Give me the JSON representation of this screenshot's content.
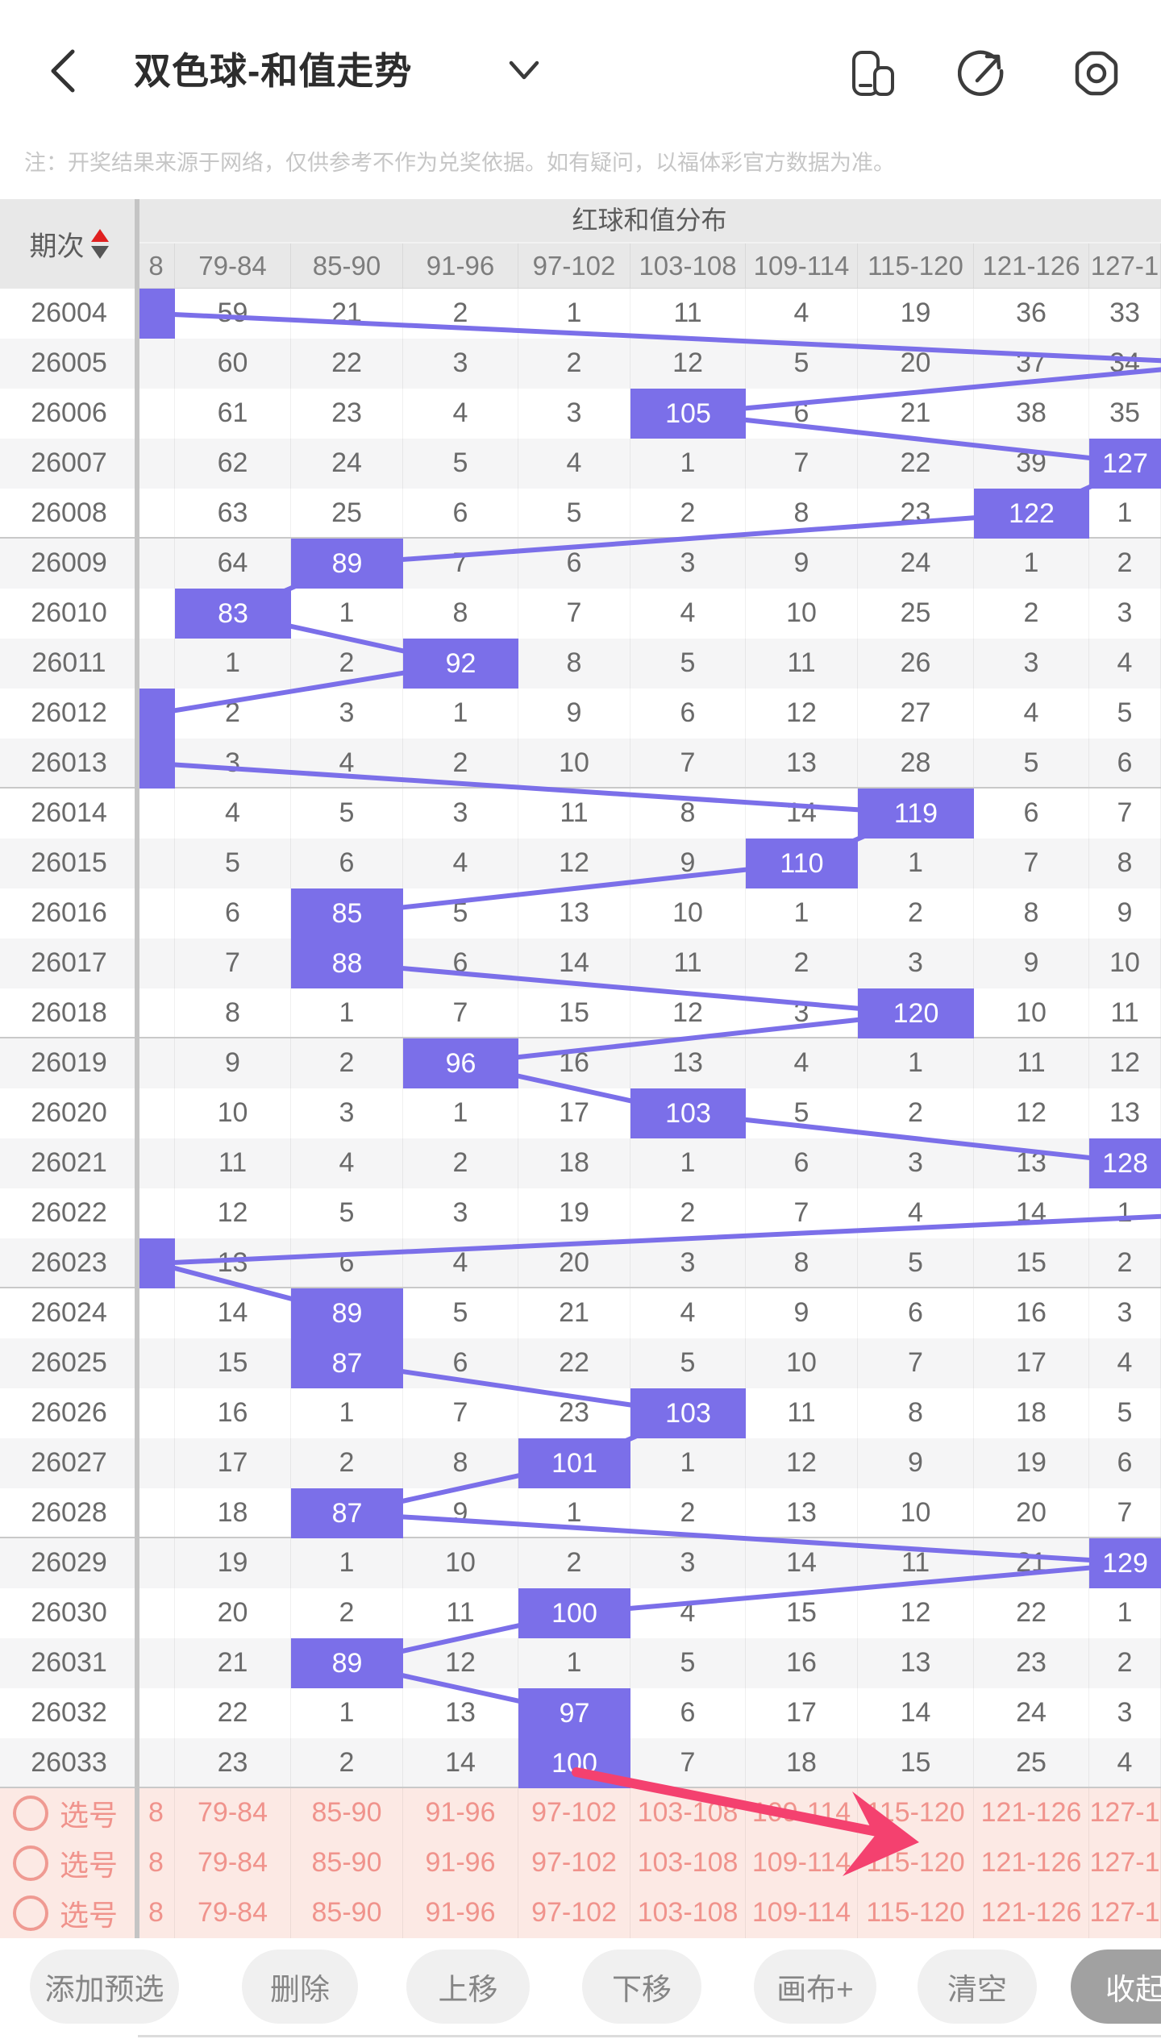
{
  "header": {
    "title": "双色球-和值走势",
    "icons": {
      "back": "back-chevron",
      "dropdown": "chevron-down",
      "split_screen": "split-screen",
      "share": "share-compass",
      "settings": "settings-hexagon"
    }
  },
  "notice": "注：开奖结果来源于网络，仅供参考不作为兑奖依据。如有疑问，以福体彩官方数据为准。",
  "table": {
    "period_column_header": "期次",
    "group_header": "红球和值分布",
    "columns": [
      "8",
      "79-84",
      "85-90",
      "91-96",
      "97-102",
      "103-108",
      "109-114",
      "115-120",
      "121-126",
      "127-1"
    ],
    "rows": [
      {
        "period": "26004",
        "hit_col": 0,
        "hit_value": "",
        "cells": [
          "",
          "59",
          "21",
          "2",
          "1",
          "11",
          "4",
          "19",
          "36",
          "33"
        ]
      },
      {
        "period": "26005",
        "hit_col": "right",
        "hit_value": "",
        "cells": [
          "",
          "60",
          "22",
          "3",
          "2",
          "12",
          "5",
          "20",
          "37",
          "34"
        ]
      },
      {
        "period": "26006",
        "hit_col": 5,
        "hit_value": "105",
        "cells": [
          "",
          "61",
          "23",
          "4",
          "3",
          "",
          "6",
          "21",
          "38",
          "35"
        ]
      },
      {
        "period": "26007",
        "hit_col": 9,
        "hit_value": "127",
        "cells": [
          "",
          "62",
          "24",
          "5",
          "4",
          "1",
          "7",
          "22",
          "39",
          ""
        ]
      },
      {
        "period": "26008",
        "hit_col": 8,
        "hit_value": "122",
        "cells": [
          "",
          "63",
          "25",
          "6",
          "5",
          "2",
          "8",
          "23",
          "",
          "1"
        ]
      },
      {
        "period": "26009",
        "hit_col": 2,
        "hit_value": "89",
        "cells": [
          "",
          "64",
          "",
          "7",
          "6",
          "3",
          "9",
          "24",
          "1",
          "2"
        ]
      },
      {
        "period": "26010",
        "hit_col": 1,
        "hit_value": "83",
        "cells": [
          "",
          "",
          "1",
          "8",
          "7",
          "4",
          "10",
          "25",
          "2",
          "3"
        ]
      },
      {
        "period": "26011",
        "hit_col": 3,
        "hit_value": "92",
        "cells": [
          "",
          "1",
          "2",
          "",
          "8",
          "5",
          "11",
          "26",
          "3",
          "4"
        ]
      },
      {
        "period": "26012",
        "hit_col": 0,
        "hit_value": "",
        "cells": [
          "",
          "2",
          "3",
          "1",
          "9",
          "6",
          "12",
          "27",
          "4",
          "5"
        ]
      },
      {
        "period": "26013",
        "hit_col": 0,
        "hit_value": "",
        "cells": [
          "",
          "3",
          "4",
          "2",
          "10",
          "7",
          "13",
          "28",
          "5",
          "6"
        ]
      },
      {
        "period": "26014",
        "hit_col": 7,
        "hit_value": "119",
        "cells": [
          "",
          "4",
          "5",
          "3",
          "11",
          "8",
          "14",
          "",
          "6",
          "7"
        ]
      },
      {
        "period": "26015",
        "hit_col": 6,
        "hit_value": "110",
        "cells": [
          "",
          "5",
          "6",
          "4",
          "12",
          "9",
          "",
          "1",
          "7",
          "8"
        ]
      },
      {
        "period": "26016",
        "hit_col": 2,
        "hit_value": "85",
        "cells": [
          "",
          "6",
          "",
          "5",
          "13",
          "10",
          "1",
          "2",
          "8",
          "9"
        ]
      },
      {
        "period": "26017",
        "hit_col": 2,
        "hit_value": "88",
        "cells": [
          "",
          "7",
          "",
          "6",
          "14",
          "11",
          "2",
          "3",
          "9",
          "10"
        ]
      },
      {
        "period": "26018",
        "hit_col": 7,
        "hit_value": "120",
        "cells": [
          "",
          "8",
          "1",
          "7",
          "15",
          "12",
          "3",
          "",
          "10",
          "11"
        ]
      },
      {
        "period": "26019",
        "hit_col": 3,
        "hit_value": "96",
        "cells": [
          "",
          "9",
          "2",
          "",
          "16",
          "13",
          "4",
          "1",
          "11",
          "12"
        ]
      },
      {
        "period": "26020",
        "hit_col": 5,
        "hit_value": "103",
        "cells": [
          "",
          "10",
          "3",
          "1",
          "17",
          "",
          "5",
          "2",
          "12",
          "13"
        ]
      },
      {
        "period": "26021",
        "hit_col": 9,
        "hit_value": "128",
        "cells": [
          "",
          "11",
          "4",
          "2",
          "18",
          "1",
          "6",
          "3",
          "13",
          ""
        ]
      },
      {
        "period": "26022",
        "hit_col": "right",
        "hit_value": "",
        "cells": [
          "",
          "12",
          "5",
          "3",
          "19",
          "2",
          "7",
          "4",
          "14",
          "1"
        ]
      },
      {
        "period": "26023",
        "hit_col": 0,
        "hit_value": "",
        "cells": [
          "",
          "13",
          "6",
          "4",
          "20",
          "3",
          "8",
          "5",
          "15",
          "2"
        ]
      },
      {
        "period": "26024",
        "hit_col": 2,
        "hit_value": "89",
        "cells": [
          "",
          "14",
          "",
          "5",
          "21",
          "4",
          "9",
          "6",
          "16",
          "3"
        ]
      },
      {
        "period": "26025",
        "hit_col": 2,
        "hit_value": "87",
        "cells": [
          "",
          "15",
          "",
          "6",
          "22",
          "5",
          "10",
          "7",
          "17",
          "4"
        ]
      },
      {
        "period": "26026",
        "hit_col": 5,
        "hit_value": "103",
        "cells": [
          "",
          "16",
          "1",
          "7",
          "23",
          "",
          "11",
          "8",
          "18",
          "5"
        ]
      },
      {
        "period": "26027",
        "hit_col": 4,
        "hit_value": "101",
        "cells": [
          "",
          "17",
          "2",
          "8",
          "",
          "1",
          "12",
          "9",
          "19",
          "6"
        ]
      },
      {
        "period": "26028",
        "hit_col": 2,
        "hit_value": "87",
        "cells": [
          "",
          "18",
          "",
          "9",
          "1",
          "2",
          "13",
          "10",
          "20",
          "7"
        ]
      },
      {
        "period": "26029",
        "hit_col": 9,
        "hit_value": "129",
        "cells": [
          "",
          "19",
          "1",
          "10",
          "2",
          "3",
          "14",
          "11",
          "21",
          ""
        ]
      },
      {
        "period": "26030",
        "hit_col": 4,
        "hit_value": "100",
        "cells": [
          "",
          "20",
          "2",
          "11",
          "",
          "4",
          "15",
          "12",
          "22",
          "1"
        ]
      },
      {
        "period": "26031",
        "hit_col": 2,
        "hit_value": "89",
        "cells": [
          "",
          "21",
          "",
          "12",
          "1",
          "5",
          "16",
          "13",
          "23",
          "2"
        ]
      },
      {
        "period": "26032",
        "hit_col": 4,
        "hit_value": "97",
        "cells": [
          "",
          "22",
          "1",
          "13",
          "",
          "6",
          "17",
          "14",
          "24",
          "3"
        ]
      },
      {
        "period": "26033",
        "hit_col": 4,
        "hit_value": "100",
        "cells": [
          "",
          "23",
          "2",
          "14",
          "",
          "7",
          "18",
          "15",
          "25",
          "4"
        ]
      }
    ]
  },
  "selection_rows": [
    {
      "label": "选号",
      "cells": [
        "8",
        "79-84",
        "85-90",
        "91-96",
        "97-102",
        "103-108",
        "109-114",
        "115-120",
        "121-126",
        "127-1"
      ]
    },
    {
      "label": "选号",
      "cells": [
        "8",
        "79-84",
        "85-90",
        "91-96",
        "97-102",
        "103-108",
        "109-114",
        "115-120",
        "121-126",
        "127-1"
      ]
    },
    {
      "label": "选号",
      "cells": [
        "8",
        "79-84",
        "85-90",
        "91-96",
        "97-102",
        "103-108",
        "109-114",
        "115-120",
        "121-126",
        "127-1"
      ]
    }
  ],
  "toolbar": {
    "buttons": [
      "添加预选",
      "删除",
      "上移",
      "下移",
      "画布+",
      "清空"
    ],
    "collapse_label": "收起"
  },
  "colors": {
    "hit_purple": "#7b6fe9",
    "trend_line": "#7b6fe9",
    "annotation_arrow": "#f4416f",
    "selection_pink_bg": "#fce9e4",
    "selection_pink_text": "#f0938c",
    "sort_up_red": "#e02020"
  }
}
